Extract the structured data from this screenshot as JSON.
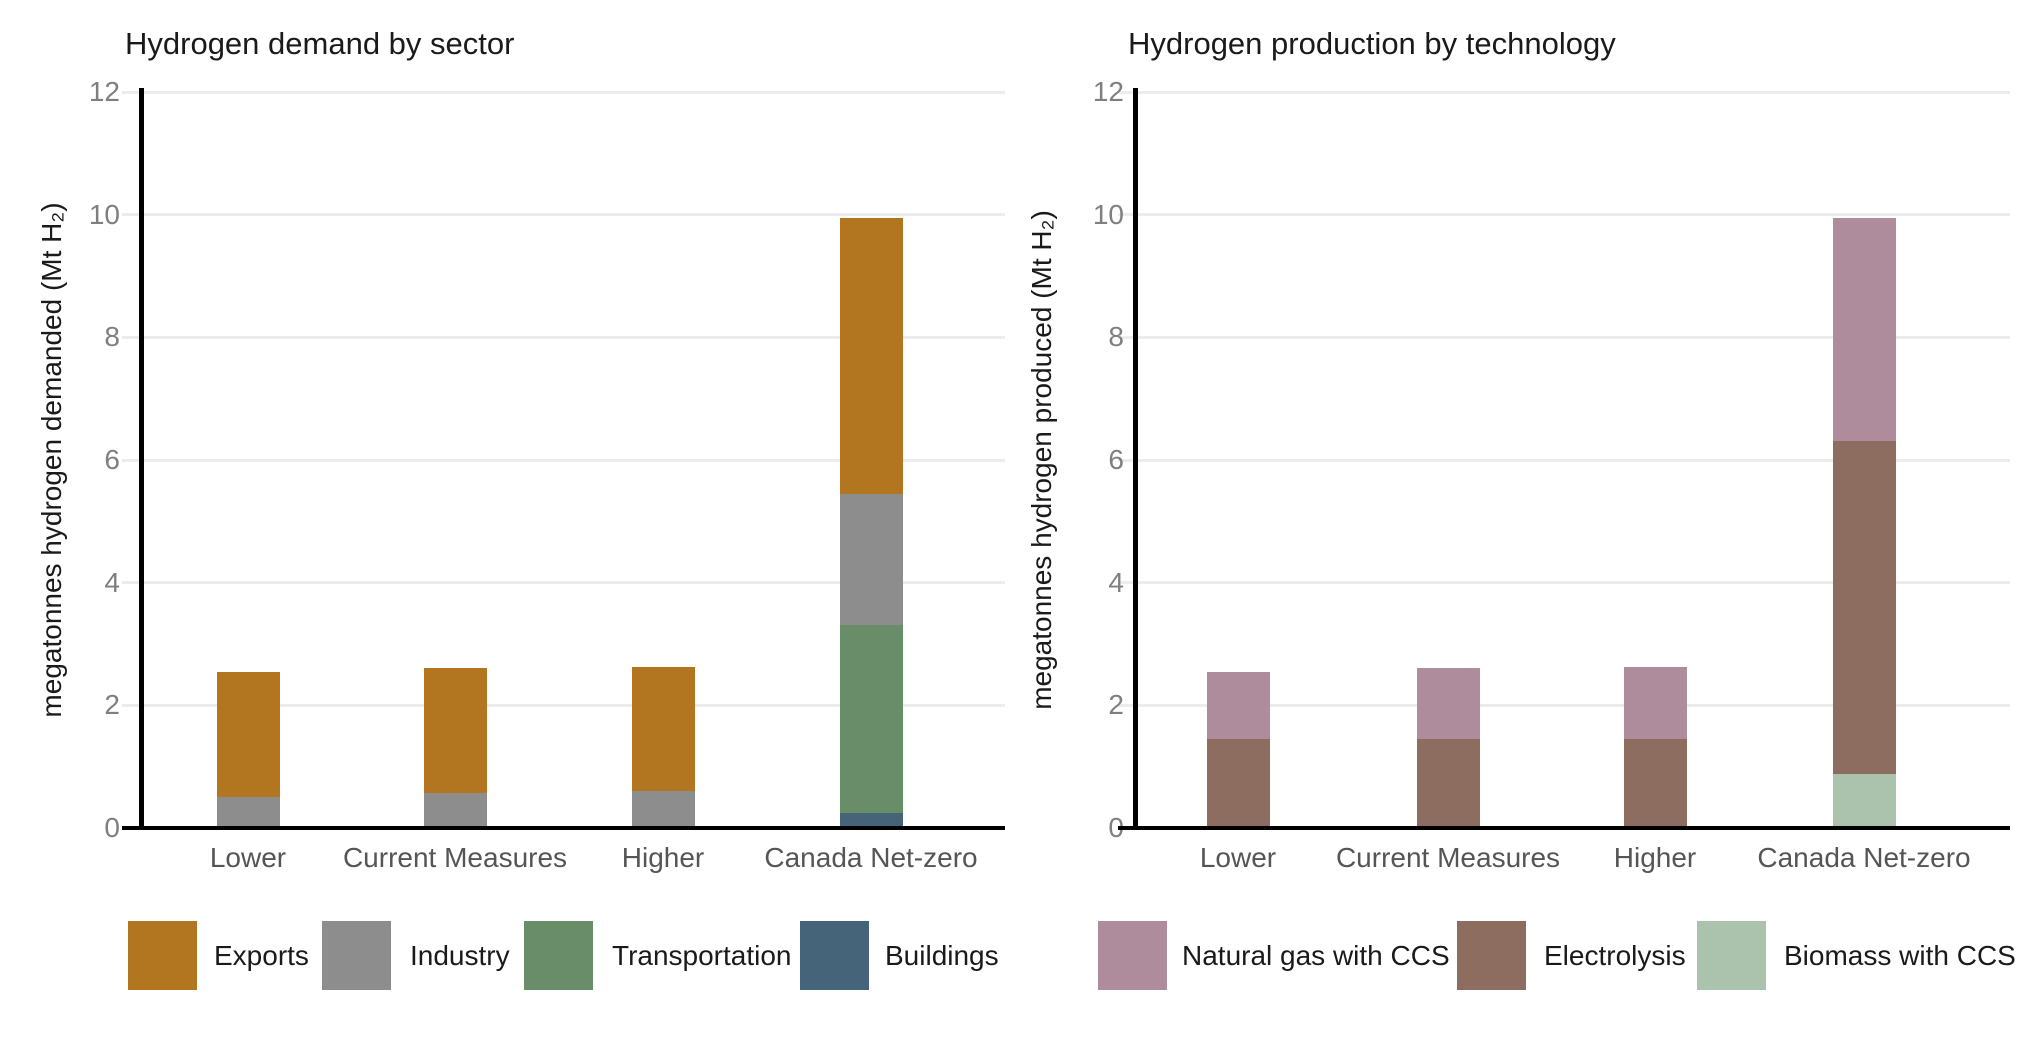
{
  "figure": {
    "background": "#ffffff",
    "grid_color": "#ececec",
    "axis_color": "#000000",
    "y_tick_label_color": "#7f7f7f",
    "x_tick_label_color": "#555555",
    "title_color": "#1a1a1a"
  },
  "chart_data": [
    {
      "type": "bar",
      "stacked": true,
      "title": "Hydrogen demand by sector",
      "xlabel": "",
      "ylabel": "megatonnes hydrogen demanded (Mt H₂)",
      "ylim": [
        0,
        12
      ],
      "y_ticks": [
        0,
        2,
        4,
        6,
        8,
        10,
        12
      ],
      "grid": "horizontal",
      "legend_position": "bottom",
      "categories": [
        "Lower",
        "Current Measures",
        "Higher",
        "Canada Net-zero"
      ],
      "series": [
        {
          "name": "Buildings",
          "color": "#456379",
          "values": [
            0,
            0,
            0,
            0.24
          ]
        },
        {
          "name": "Transportation",
          "color": "#698c69",
          "values": [
            0,
            0,
            0,
            3.07
          ]
        },
        {
          "name": "Industry",
          "color": "#8d8d8d",
          "values": [
            0.51,
            0.57,
            0.61,
            2.14
          ]
        },
        {
          "name": "Exports",
          "color": "#b1761f",
          "values": [
            2.03,
            2.04,
            2.02,
            4.49
          ]
        }
      ],
      "totals": [
        2.54,
        2.61,
        2.63,
        9.94
      ],
      "legend": [
        {
          "label": "Exports",
          "color": "#b1761f"
        },
        {
          "label": "Industry",
          "color": "#8d8d8d"
        },
        {
          "label": "Transportation",
          "color": "#698c69"
        },
        {
          "label": "Buildings",
          "color": "#456379"
        }
      ]
    },
    {
      "type": "bar",
      "stacked": true,
      "title": "Hydrogen production by technology",
      "xlabel": "",
      "ylabel": "megatonnes hydrogen produced (Mt H₂)",
      "ylim": [
        0,
        12
      ],
      "y_ticks": [
        0,
        2,
        4,
        6,
        8,
        10,
        12
      ],
      "grid": "horizontal",
      "legend_position": "bottom",
      "categories": [
        "Lower",
        "Current Measures",
        "Higher",
        "Canada Net-zero"
      ],
      "series": [
        {
          "name": "Biomass with CCS",
          "color": "#abc3ad",
          "values": [
            0,
            0,
            0,
            0.88
          ]
        },
        {
          "name": "Electrolysis",
          "color": "#8c6d60",
          "values": [
            1.45,
            1.45,
            1.45,
            5.43
          ]
        },
        {
          "name": "Natural gas with CCS",
          "color": "#ae8c9c",
          "values": [
            1.09,
            1.16,
            1.18,
            3.63
          ]
        }
      ],
      "totals": [
        2.54,
        2.61,
        2.63,
        9.94
      ],
      "legend": [
        {
          "label": "Natural gas with CCS",
          "color": "#ae8c9c"
        },
        {
          "label": "Electrolysis",
          "color": "#8c6d60"
        },
        {
          "label": "Biomass with CCS",
          "color": "#abc3ad"
        }
      ]
    }
  ]
}
